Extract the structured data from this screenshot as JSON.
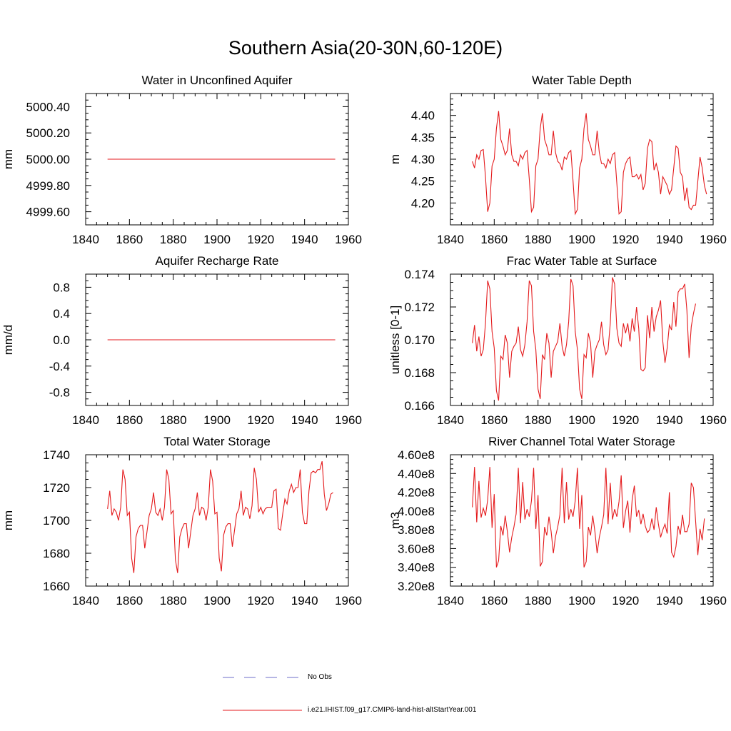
{
  "figure": {
    "title": "Southern Asia(20-30N,60-120E)",
    "legend": [
      {
        "label": "No Obs",
        "color": "#6e6ec8",
        "dash": "dashed"
      },
      {
        "label": "i.e21.IHIST.f09_g17.CMIP6-land-hist-altStartYear.001",
        "color": "#e41a1c",
        "dash": "solid"
      }
    ]
  },
  "chart_data": [
    {
      "type": "line",
      "title": "Water in Unconfined Aquifer",
      "ylabel": "mm",
      "xlim": [
        1840,
        1960
      ],
      "ylim": [
        4999.5,
        5000.5
      ],
      "xticks": [
        1840,
        1860,
        1880,
        1900,
        1920,
        1940,
        1960
      ],
      "yticks": [
        4999.6,
        4999.8,
        5000.0,
        5000.2,
        5000.4
      ],
      "ytick_labels": [
        "4999.60",
        "4999.80",
        "5000.00",
        "5000.20",
        "5000.40"
      ],
      "color": "#e41a1c",
      "x_start": 1850,
      "values": [
        5000,
        5000,
        5000,
        5000,
        5000,
        5000,
        5000,
        5000,
        5000,
        5000,
        5000,
        5000,
        5000,
        5000,
        5000,
        5000,
        5000,
        5000,
        5000,
        5000,
        5000,
        5000,
        5000,
        5000,
        5000,
        5000,
        5000,
        5000,
        5000,
        5000,
        5000,
        5000,
        5000,
        5000,
        5000,
        5000,
        5000,
        5000,
        5000,
        5000,
        5000,
        5000,
        5000,
        5000,
        5000,
        5000,
        5000,
        5000,
        5000,
        5000,
        5000,
        5000,
        5000,
        5000,
        5000,
        5000,
        5000,
        5000,
        5000,
        5000,
        5000,
        5000,
        5000,
        5000,
        5000,
        5000,
        5000,
        5000,
        5000,
        5000,
        5000,
        5000,
        5000,
        5000,
        5000,
        5000,
        5000,
        5000,
        5000,
        5000,
        5000,
        5000,
        5000,
        5000,
        5000,
        5000,
        5000,
        5000,
        5000,
        5000,
        5000,
        5000,
        5000,
        5000,
        5000,
        5000,
        5000,
        5000,
        5000,
        5000,
        5000,
        5000,
        5000,
        5000,
        5000
      ]
    },
    {
      "type": "line",
      "title": "Water Table Depth",
      "ylabel": "m",
      "xlim": [
        1840,
        1960
      ],
      "ylim": [
        4.15,
        4.45
      ],
      "xticks": [
        1840,
        1860,
        1880,
        1900,
        1920,
        1940,
        1960
      ],
      "yticks": [
        4.2,
        4.25,
        4.3,
        4.35,
        4.4
      ],
      "ytick_labels": [
        "4.20",
        "4.25",
        "4.30",
        "4.35",
        "4.40"
      ],
      "color": "#e41a1c",
      "x_start": 1850,
      "values": [
        4.295,
        4.28,
        4.31,
        4.3,
        4.32,
        4.322,
        4.26,
        4.18,
        4.2,
        4.285,
        4.3,
        4.37,
        4.41,
        4.345,
        4.33,
        4.31,
        4.32,
        4.37,
        4.31,
        4.295,
        4.295,
        4.285,
        4.31,
        4.3,
        4.315,
        4.32,
        4.255,
        4.18,
        4.19,
        4.285,
        4.3,
        4.37,
        4.405,
        4.345,
        4.33,
        4.31,
        4.31,
        4.365,
        4.315,
        4.295,
        4.29,
        4.275,
        4.305,
        4.3,
        4.315,
        4.32,
        4.25,
        4.175,
        4.185,
        4.28,
        4.3,
        4.37,
        4.405,
        4.345,
        4.33,
        4.31,
        4.31,
        4.365,
        4.315,
        4.29,
        4.29,
        4.28,
        4.3,
        4.29,
        4.31,
        4.315,
        4.245,
        4.175,
        4.18,
        4.27,
        4.29,
        4.3,
        4.305,
        4.26,
        4.26,
        4.265,
        4.255,
        4.265,
        4.23,
        4.245,
        4.325,
        4.345,
        4.34,
        4.275,
        4.29,
        4.27,
        4.22,
        4.26,
        4.25,
        4.24,
        4.22,
        4.23,
        4.28,
        4.33,
        4.325,
        4.27,
        4.26,
        4.205,
        4.235,
        4.19,
        4.185,
        4.195,
        4.195,
        4.25,
        4.305,
        4.28,
        4.24,
        4.22
      ]
    },
    {
      "type": "line",
      "title": "Aquifer Recharge Rate",
      "ylabel": "mm/d",
      "xlim": [
        1840,
        1960
      ],
      "ylim": [
        -1.0,
        1.0
      ],
      "xticks": [
        1840,
        1860,
        1880,
        1900,
        1920,
        1940,
        1960
      ],
      "yticks": [
        -0.8,
        -0.4,
        0.0,
        0.4,
        0.8
      ],
      "ytick_labels": [
        "-0.8",
        "-0.4",
        "0.0",
        "0.4",
        "0.8"
      ],
      "color": "#e41a1c",
      "x_start": 1850,
      "values": [
        0,
        0,
        0,
        0,
        0,
        0,
        0,
        0,
        0,
        0,
        0,
        0,
        0,
        0,
        0,
        0,
        0,
        0,
        0,
        0,
        0,
        0,
        0,
        0,
        0,
        0,
        0,
        0,
        0,
        0,
        0,
        0,
        0,
        0,
        0,
        0,
        0,
        0,
        0,
        0,
        0,
        0,
        0,
        0,
        0,
        0,
        0,
        0,
        0,
        0,
        0,
        0,
        0,
        0,
        0,
        0,
        0,
        0,
        0,
        0,
        0,
        0,
        0,
        0,
        0,
        0,
        0,
        0,
        0,
        0,
        0,
        0,
        0,
        0,
        0,
        0,
        0,
        0,
        0,
        0,
        0,
        0,
        0,
        0,
        0,
        0,
        0,
        0,
        0,
        0,
        0,
        0,
        0,
        0,
        0,
        0,
        0,
        0,
        0,
        0,
        0,
        0,
        0,
        0,
        0
      ]
    },
    {
      "type": "line",
      "title": "Frac Water Table at Surface",
      "ylabel": "unitless [0-1]",
      "xlim": [
        1840,
        1960
      ],
      "ylim": [
        0.166,
        0.174
      ],
      "xticks": [
        1840,
        1860,
        1880,
        1900,
        1920,
        1940,
        1960
      ],
      "yticks": [
        0.166,
        0.168,
        0.17,
        0.172,
        0.174
      ],
      "ytick_labels": [
        "0.166",
        "0.168",
        "0.170",
        "0.172",
        "0.174"
      ],
      "color": "#e41a1c",
      "x_start": 1850,
      "values": [
        0.1698,
        0.1709,
        0.1693,
        0.1702,
        0.169,
        0.1694,
        0.171,
        0.1736,
        0.1731,
        0.1705,
        0.1695,
        0.1669,
        0.1663,
        0.169,
        0.1688,
        0.1703,
        0.1698,
        0.1677,
        0.1693,
        0.1696,
        0.1698,
        0.1708,
        0.1694,
        0.169,
        0.1697,
        0.1711,
        0.1736,
        0.1733,
        0.1705,
        0.1694,
        0.167,
        0.1664,
        0.1691,
        0.1688,
        0.1704,
        0.1698,
        0.1677,
        0.1693,
        0.1696,
        0.1699,
        0.171,
        0.1696,
        0.169,
        0.1697,
        0.1711,
        0.1737,
        0.1733,
        0.1705,
        0.1694,
        0.167,
        0.1664,
        0.1691,
        0.1689,
        0.1704,
        0.1698,
        0.1677,
        0.1693,
        0.1697,
        0.17,
        0.1711,
        0.1697,
        0.1691,
        0.1694,
        0.171,
        0.1738,
        0.1734,
        0.1707,
        0.1698,
        0.1696,
        0.171,
        0.1704,
        0.171,
        0.1699,
        0.1713,
        0.1705,
        0.172,
        0.1707,
        0.1682,
        0.1681,
        0.1683,
        0.1715,
        0.1701,
        0.172,
        0.1705,
        0.1714,
        0.1718,
        0.1724,
        0.1699,
        0.1686,
        0.1695,
        0.1709,
        0.1706,
        0.1723,
        0.1708,
        0.1729,
        0.1731,
        0.1731,
        0.1734,
        0.1718,
        0.1689,
        0.1708,
        0.1716,
        0.1722
      ]
    },
    {
      "type": "line",
      "title": "Total Water Storage",
      "ylabel": "mm",
      "xlim": [
        1840,
        1960
      ],
      "ylim": [
        1660,
        1740
      ],
      "xticks": [
        1840,
        1860,
        1880,
        1900,
        1920,
        1940,
        1960
      ],
      "yticks": [
        1660,
        1680,
        1700,
        1720,
        1740
      ],
      "ytick_labels": [
        "1660",
        "1680",
        "1700",
        "1720",
        "1740"
      ],
      "color": "#e41a1c",
      "x_start": 1850,
      "values": [
        1707,
        1718,
        1703,
        1707,
        1705,
        1700,
        1708,
        1731,
        1725,
        1703,
        1705,
        1677,
        1668,
        1690,
        1695,
        1697,
        1697,
        1683,
        1693,
        1703,
        1707,
        1717,
        1705,
        1703,
        1707,
        1700,
        1708,
        1731,
        1725,
        1704,
        1706,
        1676,
        1668,
        1690,
        1695,
        1698,
        1698,
        1683,
        1693,
        1703,
        1707,
        1717,
        1703,
        1708,
        1707,
        1700,
        1708,
        1731,
        1724,
        1704,
        1705,
        1677,
        1669,
        1691,
        1696,
        1698,
        1698,
        1684,
        1694,
        1704,
        1707,
        1718,
        1703,
        1708,
        1707,
        1701,
        1709,
        1732,
        1725,
        1705,
        1708,
        1704,
        1707,
        1708,
        1708,
        1708,
        1718,
        1719,
        1695,
        1694,
        1704,
        1713,
        1710,
        1718,
        1722,
        1717,
        1720,
        1720,
        1731,
        1705,
        1698,
        1698,
        1718,
        1729,
        1730,
        1729,
        1731,
        1731,
        1736,
        1716,
        1706,
        1710,
        1716,
        1717
      ]
    },
    {
      "type": "line",
      "title": "River Channel Total Water Storage",
      "ylabel": "m3",
      "xlim": [
        1840,
        1960
      ],
      "ylim": [
        320000000,
        460000000
      ],
      "xticks": [
        1840,
        1860,
        1880,
        1900,
        1920,
        1940,
        1960
      ],
      "yticks": [
        320000000,
        340000000,
        360000000,
        380000000,
        400000000,
        420000000,
        440000000,
        460000000
      ],
      "ytick_labels": [
        "3.20e8",
        "3.40e8",
        "3.60e8",
        "3.80e8",
        "4.00e8",
        "4.20e8",
        "4.40e8",
        "4.60e8"
      ],
      "color": "#e41a1c",
      "x_start": 1850,
      "values": [
        404000000,
        447000000,
        388000000,
        432000000,
        393000000,
        403000000,
        395000000,
        412000000,
        447000000,
        382000000,
        418000000,
        340000000,
        347000000,
        384000000,
        374000000,
        395000000,
        378000000,
        356000000,
        372000000,
        383000000,
        397000000,
        446000000,
        387000000,
        431000000,
        391000000,
        402000000,
        394000000,
        411000000,
        446000000,
        381000000,
        417000000,
        341000000,
        346000000,
        383000000,
        374000000,
        394000000,
        378000000,
        355000000,
        373000000,
        383000000,
        396000000,
        446000000,
        387000000,
        431000000,
        391000000,
        402000000,
        394000000,
        411000000,
        446000000,
        381000000,
        417000000,
        340000000,
        346000000,
        383000000,
        374000000,
        395000000,
        378000000,
        355000000,
        372000000,
        383000000,
        396000000,
        446000000,
        386000000,
        430000000,
        391000000,
        402000000,
        394000000,
        410000000,
        438000000,
        382000000,
        400000000,
        411000000,
        377000000,
        412000000,
        427000000,
        394000000,
        401000000,
        386000000,
        397000000,
        384000000,
        377000000,
        380000000,
        392000000,
        380000000,
        404000000,
        386000000,
        372000000,
        380000000,
        386000000,
        376000000,
        420000000,
        356000000,
        351000000,
        362000000,
        384000000,
        375000000,
        396000000,
        378000000,
        378000000,
        386000000,
        430000000,
        425000000,
        389000000,
        353000000,
        381000000,
        369000000,
        392000000
      ]
    }
  ]
}
